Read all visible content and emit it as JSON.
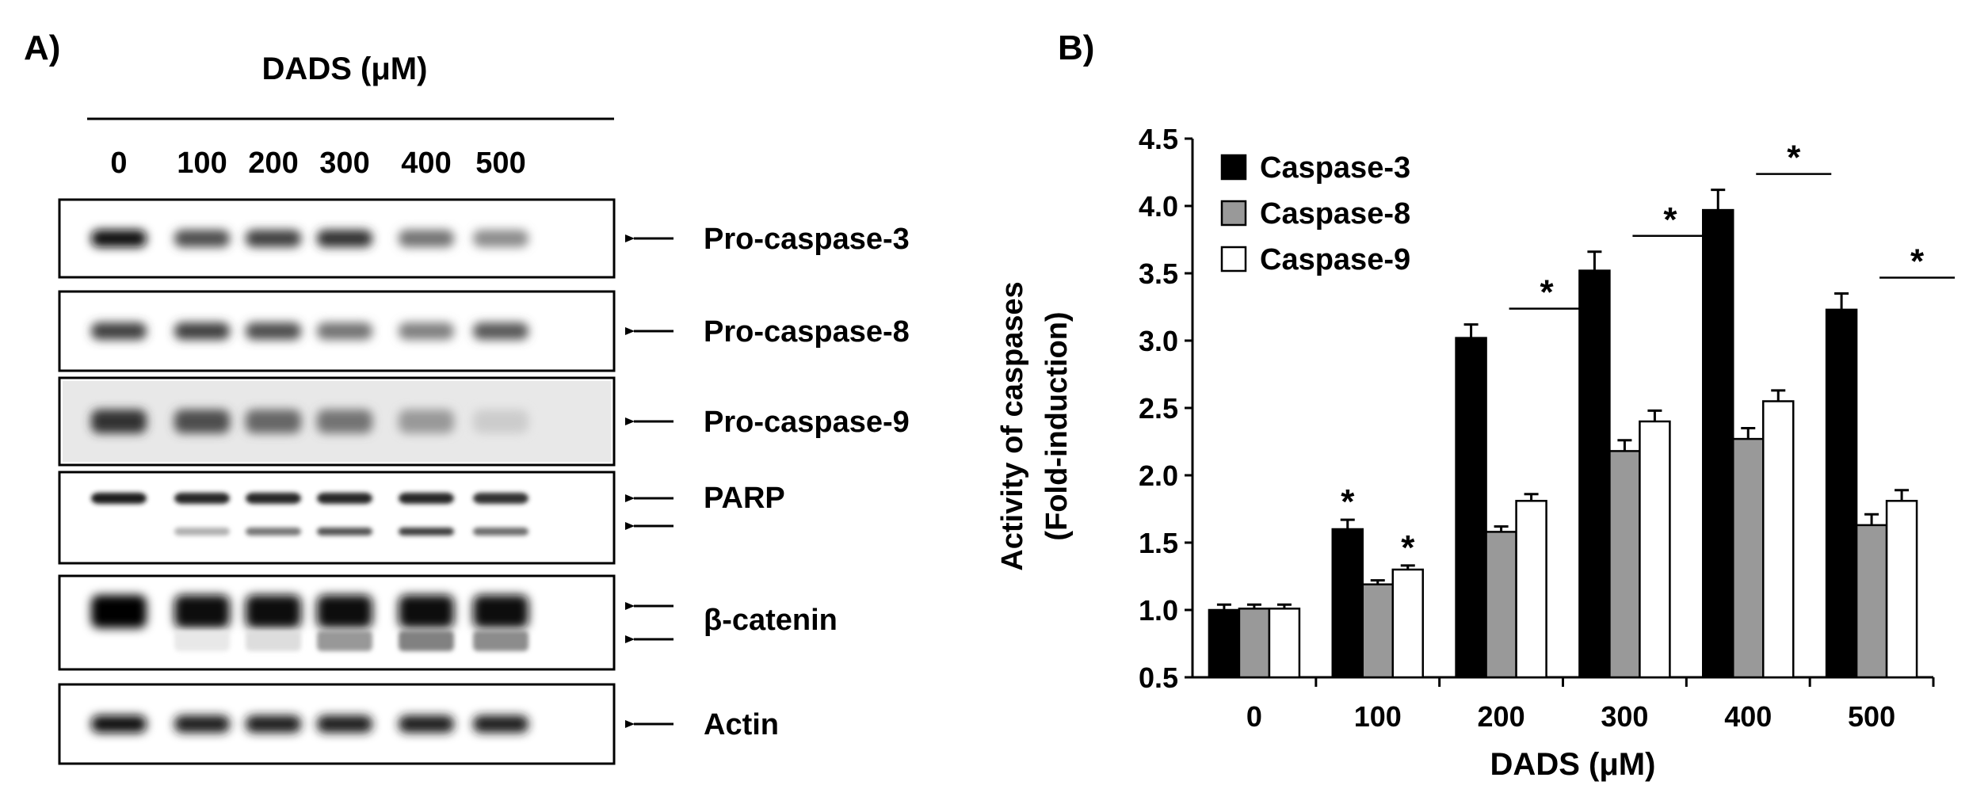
{
  "panel_a": {
    "label": "A)",
    "xlabel": "DADS (μM)",
    "lanes": [
      "0",
      "100",
      "200",
      "300",
      "400",
      "500"
    ],
    "blots": [
      {
        "label": "Pro-caspase-3",
        "band_count": 1,
        "intensity": [
          0.95,
          0.7,
          0.75,
          0.8,
          0.55,
          0.45
        ]
      },
      {
        "label": "Pro-caspase-8",
        "band_count": 1,
        "intensity": [
          0.75,
          0.75,
          0.7,
          0.55,
          0.5,
          0.65
        ]
      },
      {
        "label": "Pro-caspase-9",
        "band_count": 1,
        "intensity": [
          0.8,
          0.7,
          0.6,
          0.55,
          0.4,
          0.2
        ]
      },
      {
        "label": "PARP",
        "band_count": 2,
        "intensity": [
          0.9,
          0.85,
          0.85,
          0.85,
          0.85,
          0.8
        ],
        "cleaved_intensity": [
          0.0,
          0.35,
          0.6,
          0.75,
          0.85,
          0.65
        ]
      },
      {
        "label": "β-catenin",
        "band_count": 2,
        "intensity": [
          1.0,
          0.95,
          0.95,
          0.95,
          0.95,
          0.95
        ],
        "cleaved_intensity": [
          0.0,
          0.1,
          0.15,
          0.45,
          0.55,
          0.5
        ]
      },
      {
        "label": "Actin",
        "band_count": 1,
        "intensity": [
          0.95,
          0.9,
          0.9,
          0.9,
          0.9,
          0.9
        ]
      }
    ]
  },
  "panel_b": {
    "label": "B)",
    "chart_data": {
      "type": "bar",
      "categories": [
        "0",
        "100",
        "200",
        "300",
        "400",
        "500"
      ],
      "xlabel": "DADS (μM)",
      "ylabel_line1": "Activity of caspases",
      "ylabel_line2": "(Fold-induction)",
      "ylim": [
        0.5,
        4.5
      ],
      "yticks": [
        "0.5",
        "1.0",
        "1.5",
        "2.0",
        "2.5",
        "3.0",
        "3.5",
        "4.0",
        "4.5"
      ],
      "legend_position": "top-left",
      "series": [
        {
          "name": "Caspase-3",
          "color": "#000000",
          "values": [
            1.0,
            1.6,
            3.02,
            3.52,
            3.97,
            3.23
          ],
          "errors": [
            0.04,
            0.07,
            0.1,
            0.14,
            0.15,
            0.12
          ]
        },
        {
          "name": "Caspase-8",
          "color": "#999999",
          "values": [
            1.01,
            1.19,
            1.58,
            2.18,
            2.27,
            1.63
          ],
          "errors": [
            0.03,
            0.03,
            0.04,
            0.08,
            0.08,
            0.08
          ]
        },
        {
          "name": "Caspase-9",
          "color": "#ffffff",
          "values": [
            1.01,
            1.3,
            1.81,
            2.4,
            2.55,
            1.81
          ],
          "errors": [
            0.03,
            0.03,
            0.05,
            0.08,
            0.08,
            0.08
          ]
        }
      ],
      "significance": [
        {
          "category": "100",
          "series": "Caspase-3",
          "mark": "*"
        },
        {
          "category": "100",
          "series": "Caspase-9",
          "mark": "*"
        },
        {
          "category": "200",
          "group": true,
          "mark": "*"
        },
        {
          "category": "300",
          "group": true,
          "mark": "*"
        },
        {
          "category": "400",
          "group": true,
          "mark": "*"
        },
        {
          "category": "500",
          "group": true,
          "mark": "*"
        }
      ]
    }
  }
}
